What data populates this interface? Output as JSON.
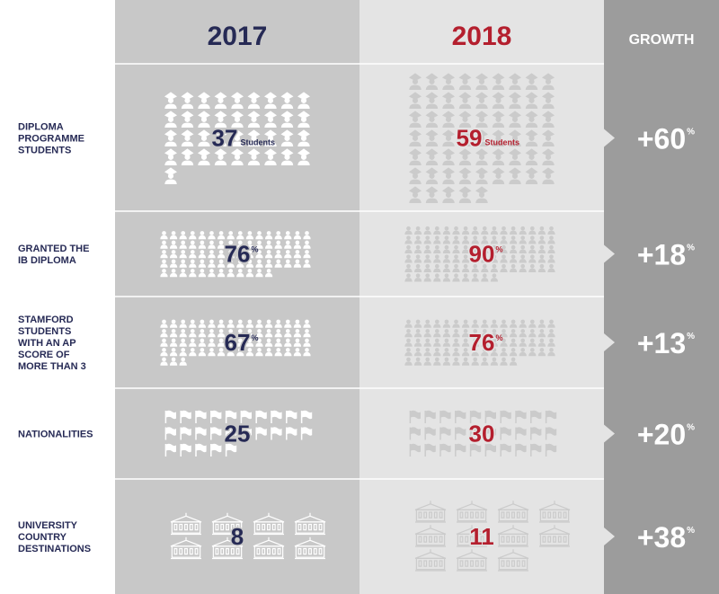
{
  "colors": {
    "col_2017_bg": "#c8c8c8",
    "col_2018_bg": "#e4e4e4",
    "col_growth_bg": "#9c9c9c",
    "navy": "#262a55",
    "red": "#b41f2e",
    "label_navy": "#262a55",
    "icon_2017": "#ffffff",
    "icon_2018": "#cbcbcb",
    "divider": "#ffffff"
  },
  "header": {
    "year_a": "2017",
    "year_b": "2018",
    "growth": "GROWTH"
  },
  "chart_data": {
    "type": "table",
    "columns": [
      "2017",
      "2018",
      "GROWTH"
    ],
    "rows": [
      {
        "label_lines": [
          "DIPLOMA",
          "PROGRAMME",
          "STUDENTS"
        ],
        "v2017": 37,
        "v2018": 59,
        "unit": "Students",
        "suffix": "",
        "growth": 60,
        "icon": "graduate-icon",
        "icons_2017": 37,
        "icons_2018": 59
      },
      {
        "label_lines": [
          "GRANTED THE",
          "IB DIPLOMA"
        ],
        "v2017": 76,
        "v2018": 90,
        "unit": "",
        "suffix": "%",
        "growth": 18,
        "icon": "person-icon",
        "icons_2017": 76,
        "icons_2018": 90
      },
      {
        "label_lines": [
          "STAMFORD",
          "STUDENTS",
          "WITH AN AP",
          "SCORE OF",
          "MORE THAN 3"
        ],
        "v2017": 67,
        "v2018": 76,
        "unit": "",
        "suffix": "%",
        "growth": 13,
        "icon": "person-icon",
        "icons_2017": 67,
        "icons_2018": 76
      },
      {
        "label_lines": [
          "NATIONALITIES"
        ],
        "v2017": 25,
        "v2018": 30,
        "unit": "",
        "suffix": "",
        "growth": 20,
        "icon": "flag-icon",
        "icons_2017": 25,
        "icons_2018": 30
      },
      {
        "label_lines": [
          "UNIVERSITY",
          "COUNTRY",
          "DESTINATIONS"
        ],
        "v2017": 8,
        "v2018": 11,
        "unit": "",
        "suffix": "",
        "growth": 38,
        "icon": "university-building-icon",
        "icons_2017": 8,
        "icons_2018": 11
      }
    ],
    "growth_prefix": "+",
    "growth_suffix": "%"
  }
}
